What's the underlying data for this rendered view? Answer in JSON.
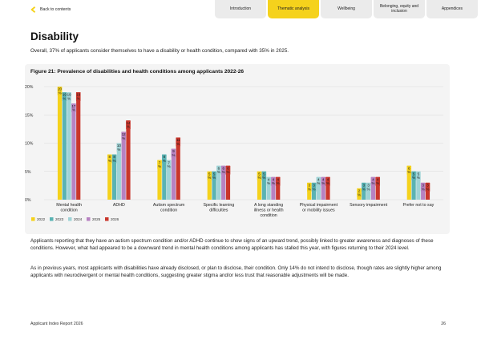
{
  "nav": {
    "back_label": "Back to contents",
    "tabs": [
      {
        "label": "Introduction",
        "active": false
      },
      {
        "label": "Thematic analysis",
        "active": true
      },
      {
        "label": "Wellbeing",
        "active": false
      },
      {
        "label": "Belonging, equity and inclusion",
        "active": false
      },
      {
        "label": "Appendices",
        "active": false
      }
    ]
  },
  "page": {
    "title": "Disability",
    "intro": "Overall, 37% of applicants consider themselves to have a disability or health condition, compared with 35% in 2025."
  },
  "figure": {
    "title": "Figure 21: Prevalence of disabilities and health conditions among applicants 2022-26"
  },
  "colors": {
    "2022": "#f5d21c",
    "2023": "#5ab3b3",
    "2024": "#9fd3d6",
    "2025": "#b782c2",
    "2026": "#c9362b",
    "grid": "#d9d9d9"
  },
  "chart_data": {
    "type": "bar",
    "title": "Figure 21: Prevalence of disabilities and health conditions among applicants 2022-26",
    "xlabel": "",
    "ylabel": "",
    "ylim": [
      0,
      20
    ],
    "y_ticks": [
      "0%",
      "5%",
      "10%",
      "15%",
      "20%"
    ],
    "y_tick_values": [
      0,
      5,
      10,
      15,
      20
    ],
    "grid": true,
    "legend_position": "bottom-left",
    "categories": [
      "Mental health condition",
      "ADHD",
      "Autism spectrum condition",
      "Specific learning difficulties",
      "A long standing illness or health condition",
      "Physical impairment or mobility issues",
      "Sensory impairment",
      "Prefer not to say"
    ],
    "series": [
      {
        "name": "2022",
        "values": [
          20,
          8,
          7,
          5,
          5,
          3,
          2,
          6
        ]
      },
      {
        "name": "2023",
        "values": [
          19,
          8,
          8,
          5,
          5,
          3,
          3,
          5
        ]
      },
      {
        "name": "2024",
        "values": [
          19,
          10,
          7,
          6,
          4,
          4,
          3,
          5
        ]
      },
      {
        "name": "2025",
        "values": [
          17,
          12,
          9,
          6,
          4,
          4,
          4,
          3
        ]
      },
      {
        "name": "2026",
        "values": [
          19,
          14,
          11,
          6,
          4,
          4,
          4,
          3
        ]
      }
    ]
  },
  "body": {
    "p1": "Applicants reporting that they have an autism spectrum condition and/or ADHD continue to show signs of an upward trend, possibly linked to greater awareness and diagnoses of these conditions. However, what had appeared to be a downward trend in mental health conditions among applicants has stalled this year, with figures returning to their 2024 level.",
    "p2": "As in previous years, most applicants with disabilities have already disclosed, or plan to disclose, their condition. Only 14% do not intend to disclose, though rates are slightly higher among applicants with neurodivergent or mental health conditions, suggesting greater stigma and/or less trust that reasonable adjustments will be made."
  },
  "footer": {
    "left": "Applicant Index Report 2026",
    "page_number": "26"
  }
}
